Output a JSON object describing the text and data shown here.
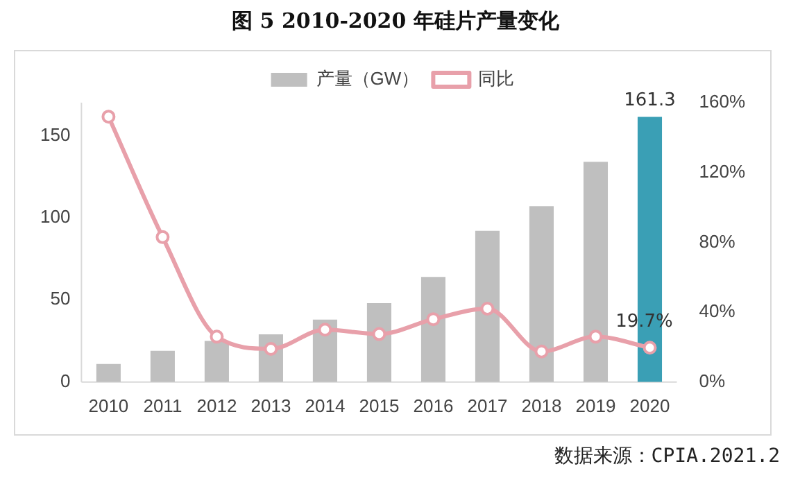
{
  "chart_data": {
    "type": "bar",
    "title": "图 5 2010-2020 年硅片产量变化",
    "categories": [
      "2010",
      "2011",
      "2012",
      "2013",
      "2014",
      "2015",
      "2016",
      "2017",
      "2018",
      "2019",
      "2020"
    ],
    "series": [
      {
        "name": "产量（GW）",
        "colors": [
          "#bfbfbf",
          "#bfbfbf",
          "#bfbfbf",
          "#bfbfbf",
          "#bfbfbf",
          "#bfbfbf",
          "#bfbfbf",
          "#bfbfbf",
          "#bfbfbf",
          "#bfbfbf",
          "#3a9fb5"
        ],
        "values": [
          11,
          19,
          25,
          29,
          38,
          48,
          64,
          92,
          107,
          134,
          161.3
        ],
        "value_labels": [
          null,
          null,
          null,
          null,
          null,
          null,
          null,
          null,
          null,
          null,
          "161.3"
        ]
      },
      {
        "name": "同比",
        "type": "line",
        "axis": "y2",
        "color": "#e8a0aa",
        "marker": "circle",
        "values": [
          152,
          83,
          26,
          19,
          30,
          27.5,
          36,
          42,
          17.5,
          26,
          19.7
        ],
        "value_labels": [
          null,
          null,
          null,
          null,
          null,
          null,
          null,
          null,
          null,
          null,
          "19.7%"
        ]
      }
    ],
    "ylim": [
      0,
      170
    ],
    "yticks": [
      0,
      50,
      100,
      150
    ],
    "y2lim": [
      0,
      160
    ],
    "y2ticks": [
      {
        "value": 0,
        "label": "0%"
      },
      {
        "value": 40,
        "label": "40%"
      },
      {
        "value": 80,
        "label": "80%"
      },
      {
        "value": 120,
        "label": "120%"
      },
      {
        "value": 160,
        "label": "160%"
      }
    ],
    "grid": false,
    "legend": "top",
    "annotations": [
      "数据来源：CPIA.2021.2"
    ]
  }
}
